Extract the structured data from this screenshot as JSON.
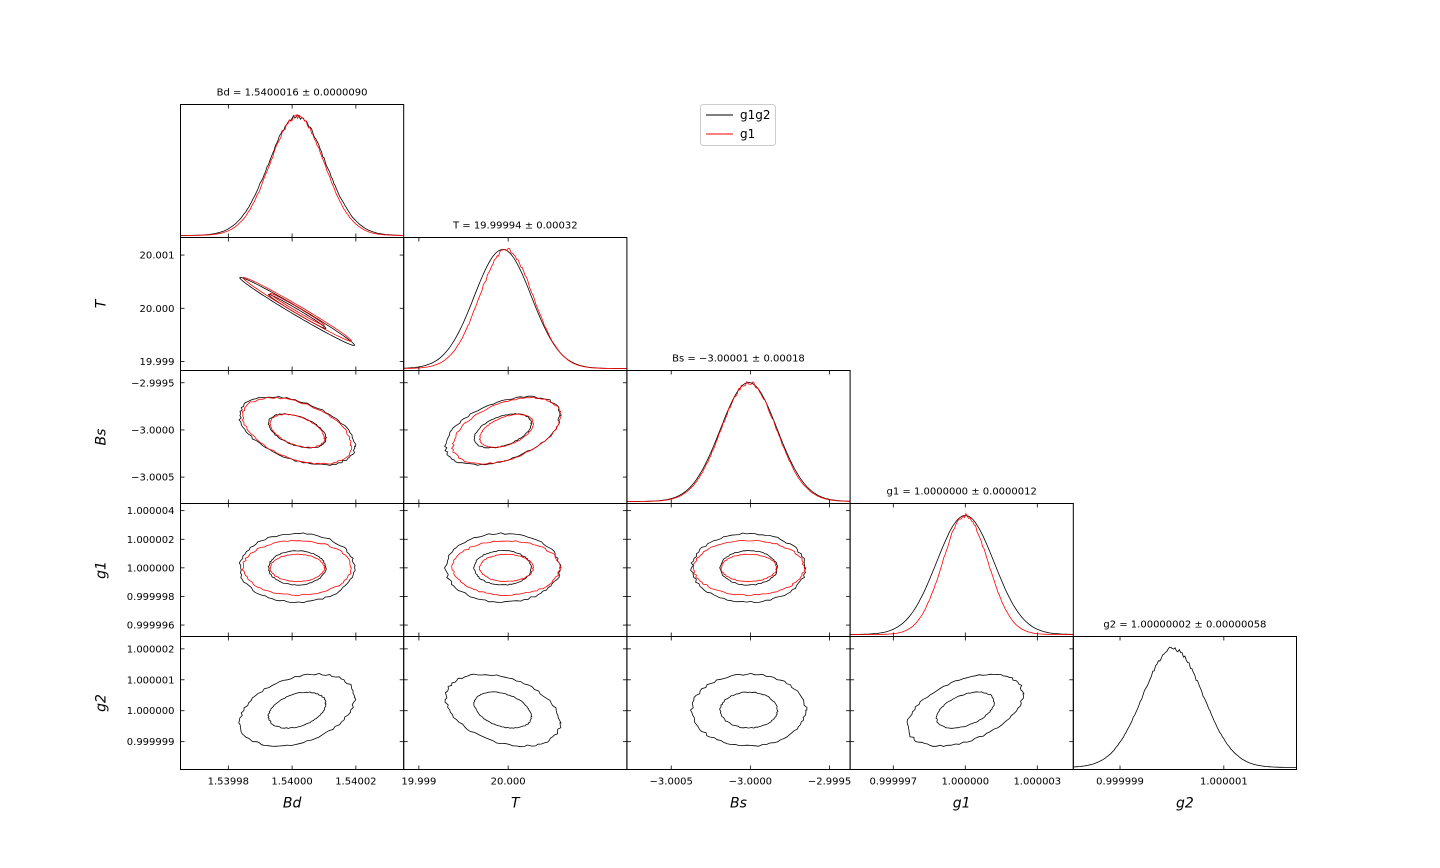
{
  "legend": {
    "placement": "top-center",
    "entries": [
      {
        "label": "g1g2",
        "color": "#000000"
      },
      {
        "label": "g1",
        "color": "#ff0000"
      }
    ]
  },
  "colors": {
    "g1g2": "#000000",
    "g1": "#ff0000"
  },
  "chart_data": {
    "type": "corner",
    "parameters": [
      "Bd",
      "T",
      "Bs",
      "g1",
      "g2"
    ],
    "axis_labels": [
      "Bd",
      "T",
      "Bs",
      "g1",
      "g2"
    ],
    "titles": [
      "$Bd = 1.5400016 \\pm 0.0000090$",
      "$T = 19.99994 \\pm 0.00032$",
      "$Bs = -3.00001 \\pm 0.00018$",
      "$g1 = 1.0000000 \\pm 0.0000012$",
      "$g2 = 1.00000002 \\pm 0.00000058$"
    ],
    "title_display": [
      "Bd = 1.5400016 ± 0.0000090",
      "T = 19.99994 ± 0.00032",
      "Bs = −3.00001 ± 0.00018",
      "g1 = 1.0000000 ± 0.0000012",
      "g2 = 1.00000002 ± 0.00000058"
    ],
    "ranges": [
      [
        1.539965,
        1.540035
      ],
      [
        19.99883,
        20.00133
      ],
      [
        -3.00078,
        -2.99937
      ],
      [
        0.9999952,
        1.0000045
      ],
      [
        0.9999981,
        1.0000024
      ]
    ],
    "x_ticks": [
      {
        "values": [
          1.53998,
          1.54,
          1.54002
        ],
        "labels": [
          "1.53998",
          "1.54000",
          "1.54002"
        ]
      },
      {
        "values": [
          19.999,
          20.0
        ],
        "labels": [
          "19.999",
          "20.000"
        ]
      },
      {
        "values": [
          -3.0005,
          -3.0,
          -2.9995
        ],
        "labels": [
          "−3.0005",
          "−3.0000",
          "−2.9995"
        ]
      },
      {
        "values": [
          0.999997,
          1.0,
          1.000003
        ],
        "labels": [
          "0.999997",
          "1.000000",
          "1.000003"
        ]
      },
      {
        "values": [
          0.999999,
          1.000001
        ],
        "labels": [
          "0.999999",
          "1.000001"
        ]
      }
    ],
    "y_ticks": [
      null,
      {
        "values": [
          19.999,
          20.0,
          20.001
        ],
        "labels": [
          "19.999",
          "20.000",
          "20.001"
        ]
      },
      {
        "values": [
          -3.0005,
          -3.0,
          -2.9995
        ],
        "labels": [
          "−3.0005",
          "−3.0000",
          "−2.9995"
        ]
      },
      {
        "values": [
          0.999996,
          0.999998,
          1.0,
          1.000002,
          1.000004
        ],
        "labels": [
          "0.999996",
          "0.999998",
          "1.000000",
          "1.000002",
          "1.000004"
        ]
      },
      {
        "values": [
          0.999999,
          1.0,
          1.000001,
          1.000002
        ],
        "labels": [
          "0.999999",
          "1.000000",
          "1.000001",
          "1.000002"
        ]
      }
    ],
    "series": [
      {
        "name": "g1g2",
        "color": "#000000",
        "params": [
          "Bd",
          "T",
          "Bs",
          "g1",
          "g2"
        ],
        "mean": [
          1.5400016,
          19.99994,
          -3.00001,
          1.0,
          1.00000002
        ],
        "sigma": [
          9e-06,
          0.00032,
          0.00018,
          1.2e-06,
          5.8e-07
        ],
        "corr": [
          [
            1.0,
            -0.99,
            -0.45,
            0.0,
            0.35
          ],
          [
            -0.99,
            1.0,
            0.45,
            0.0,
            -0.35
          ],
          [
            -0.45,
            0.45,
            1.0,
            0.0,
            0.0
          ],
          [
            0.0,
            0.0,
            0.0,
            1.0,
            0.45
          ],
          [
            0.35,
            -0.35,
            0.0,
            0.45,
            1.0
          ]
        ]
      },
      {
        "name": "g1",
        "color": "#ff0000",
        "params": [
          "Bd",
          "T",
          "Bs",
          "g1"
        ],
        "mean": [
          1.5400016,
          19.99998,
          -3.00001,
          1.0
        ],
        "sigma": [
          8.5e-06,
          0.0003,
          0.000175,
          9.5e-07
        ],
        "corr": [
          [
            1.0,
            -0.99,
            -0.45,
            0.0
          ],
          [
            -0.99,
            1.0,
            0.45,
            0.0
          ],
          [
            -0.45,
            0.45,
            1.0,
            0.0
          ],
          [
            0.0,
            0.0,
            0.0,
            1.0
          ]
        ]
      }
    ],
    "contour_levels_sigma": [
      1,
      2
    ],
    "grid": false
  }
}
